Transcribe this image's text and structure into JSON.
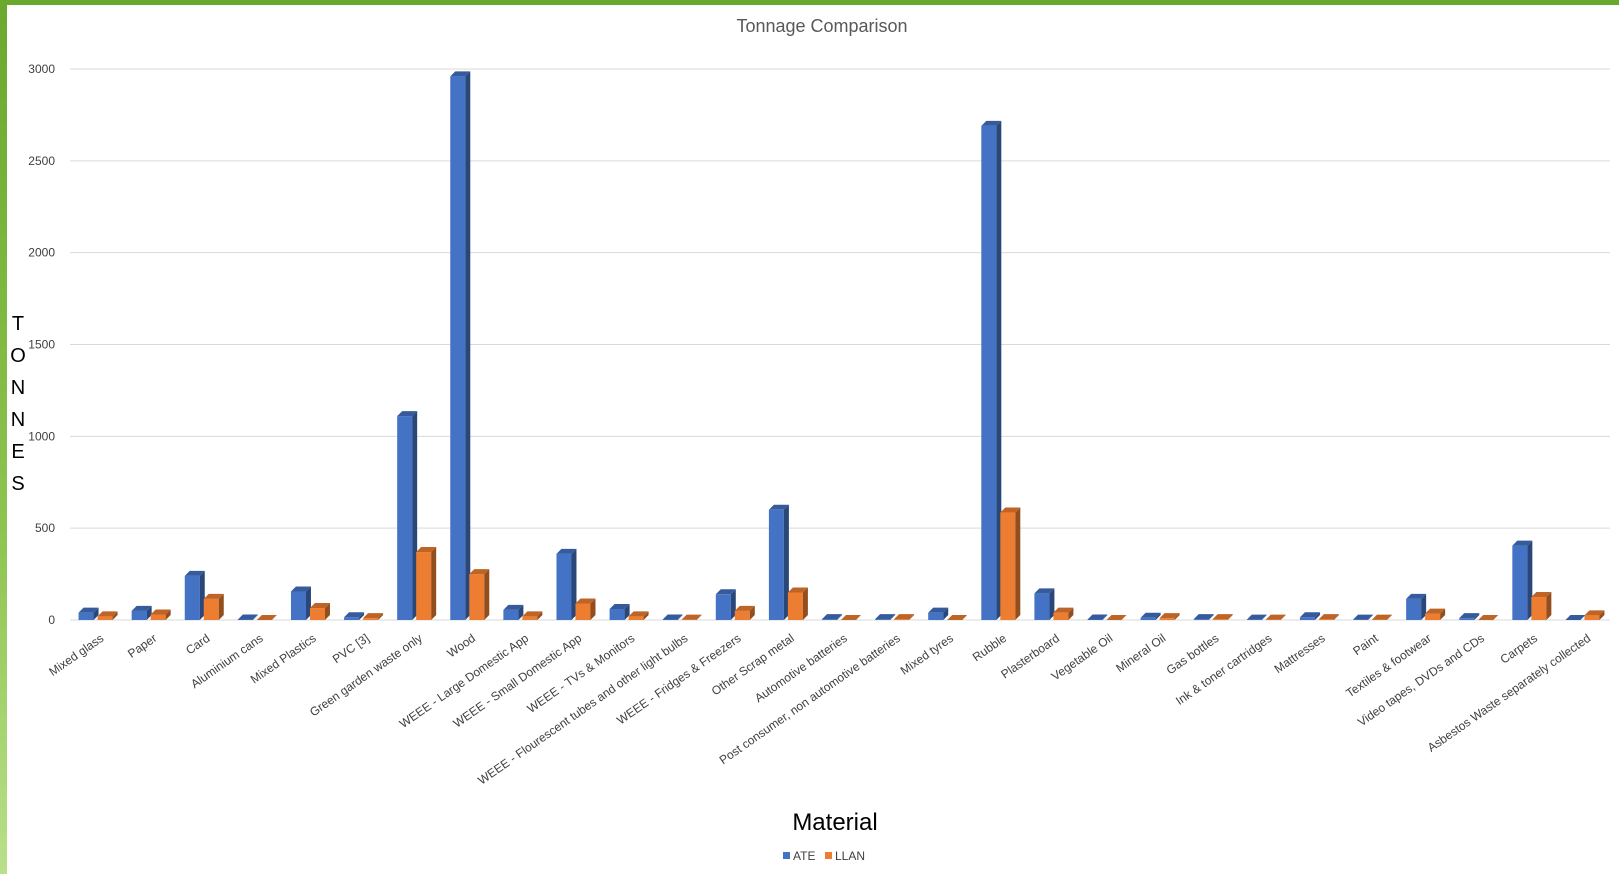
{
  "chart_data": {
    "type": "bar",
    "title": "Tonnage Comparison",
    "xlabel": "Material",
    "ylabel": "TONNES",
    "ylim": [
      0,
      3000
    ],
    "yticks": [
      "0",
      "500",
      "1000",
      "1500",
      "2000",
      "2500",
      "3000"
    ],
    "grid": true,
    "legend_position": "bottom",
    "categories": [
      "Mixed glass",
      "Paper",
      "Card",
      "Aluminium cans",
      "Mixed Plastics",
      "PVC [3]",
      "Green garden waste only",
      "Wood",
      "WEEE - Large Domestic App",
      "WEEE - Small Domestic App",
      "WEEE - TVs & Monitors",
      "WEEE - Flourescent tubes and other light bulbs",
      "WEEE - Fridges & Freezers",
      "Other Scrap metal",
      "Automotive batteries",
      "Post consumer, non automotive batteries",
      "Mixed tyres",
      "Rubble",
      "Plasterboard",
      "Vegetable Oil",
      "Mineral Oil",
      "Gas bottles",
      "Ink & toner cartridges",
      "Mattresses",
      "Paint",
      "Textiles & footwear",
      "Video tapes, DVDs and CDs",
      "Carpets",
      "Asbestos Waste separately collected"
    ],
    "series": [
      {
        "name": "ATE",
        "color": "#4472c4",
        "values": [
          40,
          50,
          240,
          3,
          155,
          15,
          1110,
          2960,
          55,
          360,
          60,
          3,
          140,
          600,
          5,
          5,
          40,
          2690,
          145,
          3,
          12,
          5,
          2,
          15,
          2,
          115,
          10,
          405,
          0
        ]
      },
      {
        "name": "LLAN",
        "color": "#ed7d31",
        "values": [
          20,
          30,
          115,
          0,
          65,
          10,
          370,
          250,
          20,
          90,
          20,
          2,
          50,
          150,
          0,
          5,
          0,
          585,
          40,
          0,
          10,
          5,
          2,
          5,
          2,
          35,
          0,
          125,
          25
        ]
      }
    ]
  }
}
